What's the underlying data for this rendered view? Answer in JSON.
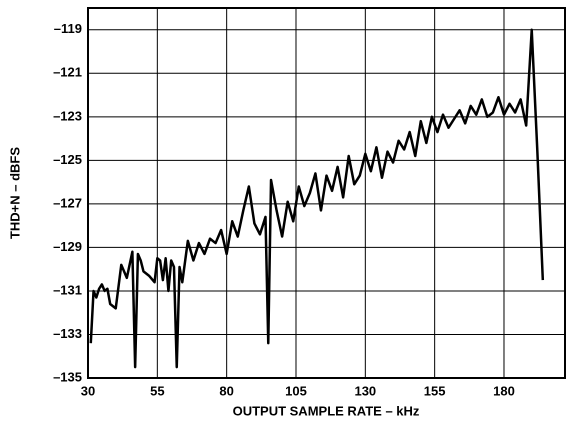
{
  "chart_data": {
    "type": "line",
    "x_label": "OUTPUT SAMPLE RATE – kHz",
    "y_label": "THD+N – dBFS",
    "xlim": [
      30,
      202
    ],
    "xticks": [
      30,
      55,
      80,
      105,
      130,
      155,
      180
    ],
    "ylim": [
      -135,
      -118
    ],
    "yticks": [
      {
        "value": -135,
        "label": "–135"
      },
      {
        "value": -133,
        "label": "–133"
      },
      {
        "value": -131,
        "label": "–131"
      },
      {
        "value": -129,
        "label": "–129"
      },
      {
        "value": -127,
        "label": "–127"
      },
      {
        "value": -125,
        "label": "–125"
      },
      {
        "value": -123,
        "label": "–123"
      },
      {
        "value": -121,
        "label": "–121"
      },
      {
        "value": -119,
        "label": "–119"
      }
    ],
    "grid": true,
    "series": [
      {
        "color": "#000000",
        "x": [
          31,
          32,
          33,
          34,
          35,
          36,
          37,
          38,
          40,
          42,
          44,
          46,
          47,
          48,
          49,
          50,
          52,
          54,
          55,
          56,
          57,
          58,
          59,
          60,
          61,
          62,
          63,
          64,
          66,
          68,
          70,
          72,
          74,
          76,
          78,
          80,
          82,
          84,
          86,
          88,
          90,
          92,
          94,
          95,
          96,
          98,
          100,
          102,
          104,
          106,
          108,
          110,
          112,
          114,
          116,
          118,
          120,
          122,
          124,
          126,
          128,
          130,
          132,
          134,
          136,
          138,
          140,
          142,
          144,
          146,
          148,
          150,
          152,
          154,
          156,
          158,
          160,
          162,
          164,
          166,
          168,
          170,
          172,
          174,
          176,
          178,
          180,
          182,
          184,
          186,
          188,
          190,
          192,
          194
        ],
        "values": [
          -133.4,
          -131,
          -131.3,
          -130.9,
          -130.7,
          -131,
          -130.9,
          -131.6,
          -131.8,
          -129.8,
          -130.4,
          -129.2,
          -134.5,
          -129.3,
          -129.6,
          -130.1,
          -130.3,
          -130.6,
          -129.5,
          -129.6,
          -130.5,
          -129.5,
          -131,
          -129.6,
          -129.9,
          -134.5,
          -129.9,
          -130.6,
          -128.7,
          -129.6,
          -128.8,
          -129.3,
          -128.6,
          -128.8,
          -128.2,
          -129.3,
          -127.8,
          -128.5,
          -127.3,
          -126.2,
          -127.9,
          -128.4,
          -127.6,
          -133.4,
          -125.9,
          -127.3,
          -128.5,
          -126.9,
          -127.8,
          -126.2,
          -127.1,
          -126.5,
          -125.6,
          -127.3,
          -125.7,
          -126.4,
          -125.3,
          -126.7,
          -124.8,
          -126.1,
          -125.7,
          -124.7,
          -125.5,
          -124.4,
          -125.8,
          -124.6,
          -125.1,
          -124.1,
          -124.5,
          -123.7,
          -124.8,
          -123.2,
          -124.2,
          -123,
          -123.7,
          -122.9,
          -123.5,
          -123.1,
          -122.7,
          -123.3,
          -122.5,
          -122.9,
          -122.2,
          -123,
          -122.8,
          -122.1,
          -122.9,
          -122.4,
          -122.8,
          -122.2,
          -123.4,
          -119,
          -124.5,
          -130.5
        ]
      }
    ]
  }
}
